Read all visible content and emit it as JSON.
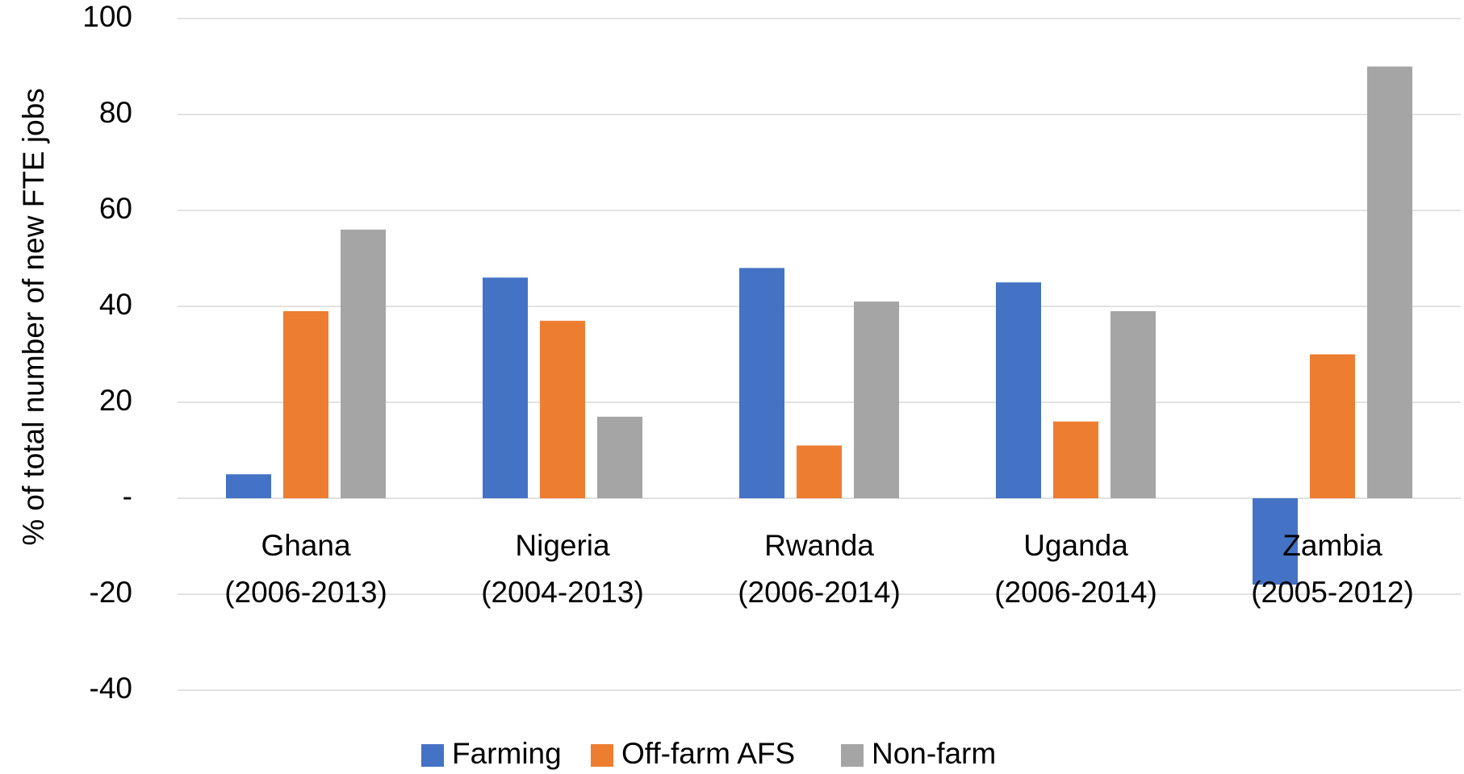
{
  "chart_data": {
    "type": "bar",
    "y_axis_label": "% of total number of new FTE jobs",
    "categories": [
      [
        "Ghana",
        "(2006-2013)"
      ],
      [
        "Nigeria",
        "(2004-2013)"
      ],
      [
        "Rwanda",
        "(2006-2014)"
      ],
      [
        "Uganda",
        "(2006-2014)"
      ],
      [
        "Zambia",
        "(2005-2012)"
      ]
    ],
    "series": [
      {
        "name": "Farming",
        "color": "#4472c4",
        "values": [
          5,
          46,
          48,
          45,
          -18
        ]
      },
      {
        "name": "Off-farm AFS",
        "color": "#ed7d31",
        "values": [
          39,
          37,
          11,
          16,
          30
        ]
      },
      {
        "name": "Non-farm",
        "color": "#a5a5a5",
        "values": [
          56,
          17,
          41,
          39,
          90
        ]
      }
    ],
    "ylim": [
      -40,
      100
    ],
    "yticks": [
      -40,
      -20,
      {
        "value": 0,
        "label": "-"
      },
      20,
      40,
      60,
      80,
      100
    ],
    "grid": true,
    "legend": "bottom"
  }
}
